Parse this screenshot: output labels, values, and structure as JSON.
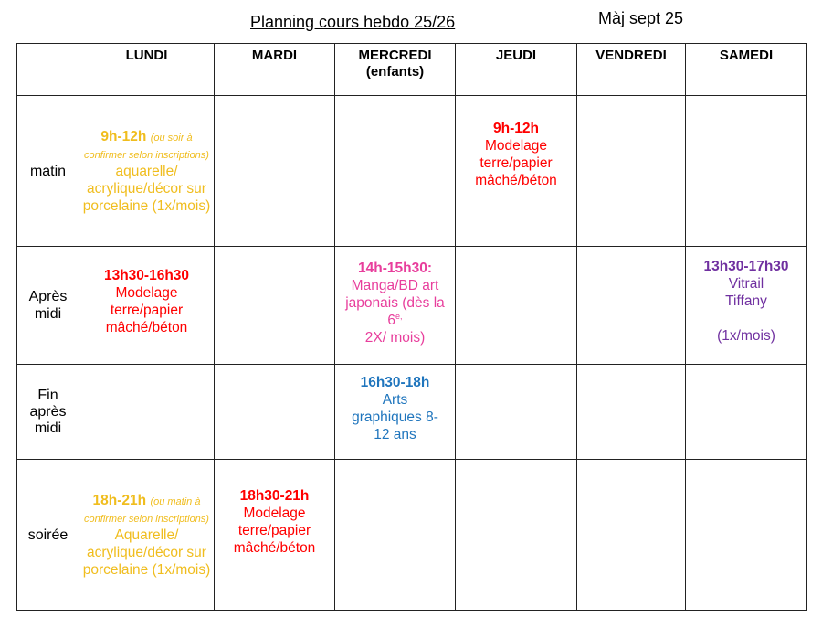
{
  "header": {
    "title": "Planning cours hebdo 25/26",
    "update": "Màj sept 25"
  },
  "colors": {
    "yellow": "#f0bd1e",
    "red": "#ff0000",
    "pink": "#e83e9c",
    "blue": "#1f75bd",
    "purple": "#7030a0"
  },
  "days": [
    "LUNDI",
    "MARDI",
    "MERCREDI",
    "JEUDI",
    "VENDREDI",
    "SAMEDI"
  ],
  "mercredi_sub": "(enfants)",
  "rows": [
    "matin",
    "Après midi",
    "Fin après midi",
    "soirée"
  ],
  "cells": {
    "lundi_matin": {
      "time": "9h-12h",
      "note": "(ou soir à confirmer selon inscriptions)",
      "activity": "aquarelle/ acrylique/décor sur porcelaine (1x/mois)"
    },
    "jeudi_matin": {
      "time": "9h-12h",
      "activity": "Modelage terre/papier mâché/béton"
    },
    "lundi_aprem": {
      "time": "13h30-16h30",
      "activity": "Modelage terre/papier mâché/béton"
    },
    "mercredi_aprem": {
      "time": "14h-15h30:",
      "activity": "Manga/BD art japonais (dès la 6",
      "sup": "e,",
      "activity2": "2X/ mois)"
    },
    "samedi_aprem": {
      "time": "13h30-17h30",
      "activity": "Vitrail Tiffany",
      "freq": "(1x/mois)"
    },
    "mercredi_fin": {
      "time": "16h30-18h",
      "activity": "Arts graphiques 8-12 ans"
    },
    "lundi_soir": {
      "time": "18h-21h",
      "note": "(ou matin à confirmer selon inscriptions)",
      "activity": "Aquarelle/ acrylique/décor sur porcelaine (1x/mois)"
    },
    "mardi_soir": {
      "time": "18h30-21h",
      "activity": "Modelage terre/papier mâché/béton"
    }
  }
}
